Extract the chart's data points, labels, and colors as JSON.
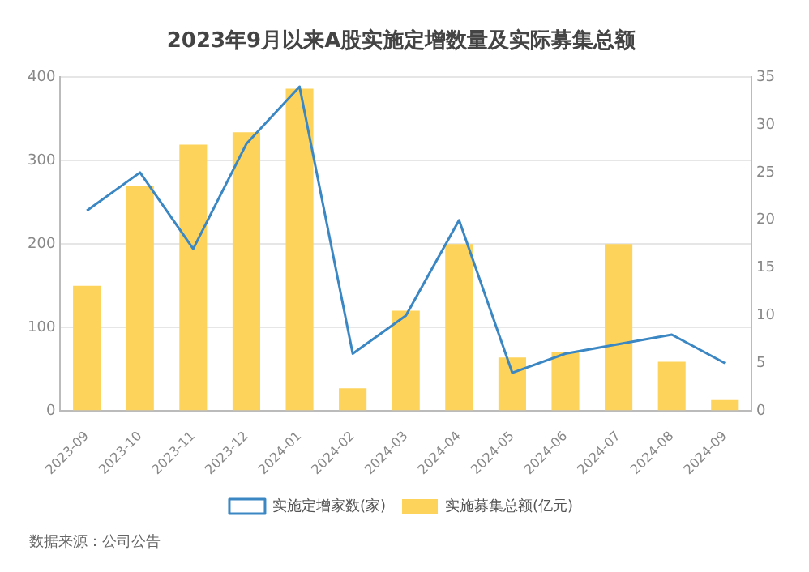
{
  "chart_data": {
    "type": "bar",
    "title": "2023年9月以来A股实施定增数量及实际募集总额",
    "categories": [
      "2023-09",
      "2023-10",
      "2023-11",
      "2023-12",
      "2024-01",
      "2024-02",
      "2024-03",
      "2024-04",
      "2024-05",
      "2024-06",
      "2024-07",
      "2024-08",
      "2024-09"
    ],
    "series": [
      {
        "name": "实施定增家数(家)",
        "type": "line",
        "axis": "y2",
        "color": "#3b87c4",
        "values": [
          21,
          25,
          17,
          28,
          34,
          6,
          10,
          20,
          4,
          6,
          7,
          8,
          5
        ]
      },
      {
        "name": "实施募集总额(亿元)",
        "color": "#fdd35c",
        "values": [
          150,
          270,
          319,
          334,
          386,
          27,
          120,
          200,
          64,
          71,
          200,
          59,
          13
        ]
      }
    ],
    "ylim": [
      0,
      400
    ],
    "yticks": [
      0,
      100,
      200,
      300,
      400
    ],
    "y2lim": [
      0,
      35
    ],
    "y2ticks": [
      0,
      5,
      10,
      15,
      20,
      25,
      30,
      35
    ],
    "grid": "y",
    "legend": "bottom",
    "marker": "none",
    "line_style": "solid",
    "annotations": [
      "数据来源：公司公告"
    ]
  }
}
